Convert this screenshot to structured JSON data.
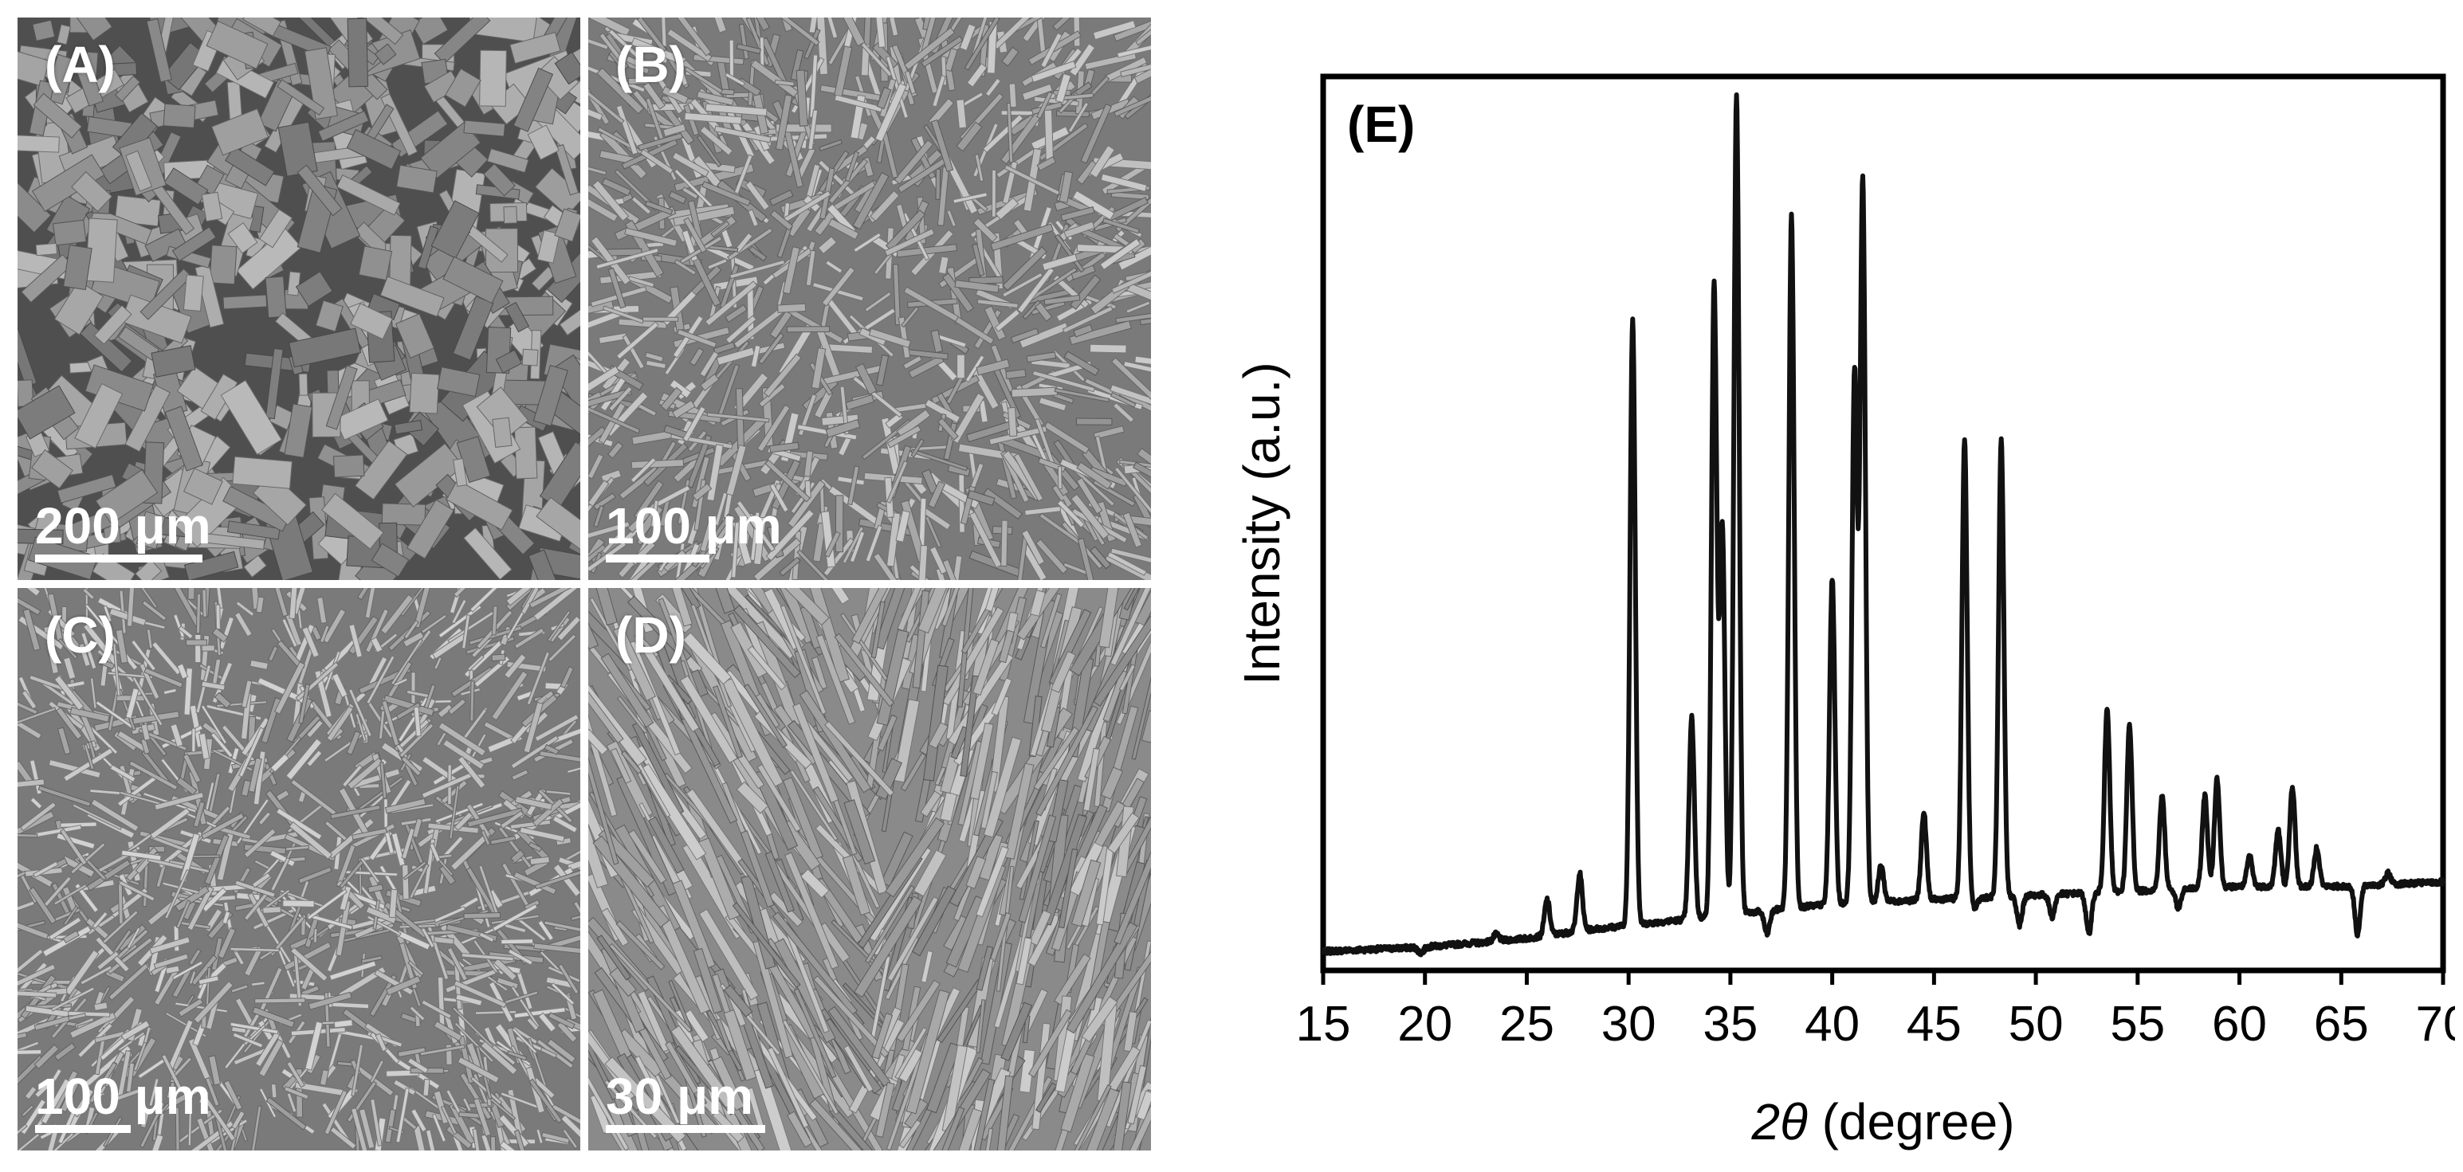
{
  "panels": [
    {
      "label": "(A)",
      "scale": "200 μm",
      "texture": "plate-fragments"
    },
    {
      "label": "(B)",
      "scale": "100 μm",
      "texture": "needle-clusters"
    },
    {
      "label": "(C)",
      "scale": "100 μm",
      "texture": "fibrous-aggregates"
    },
    {
      "label": "(D)",
      "scale": "30 μm",
      "texture": "layered-bundles"
    }
  ],
  "colors": {
    "sem_dark": "#5a5a5a",
    "sem_light": "#c8c8c8",
    "line": "#111111",
    "axis": "#000000"
  },
  "chart_data": {
    "type": "line",
    "panel_label": "(E)",
    "xlabel": "2θ (degree)",
    "ylabel": "Intensity (a.u.)",
    "xlim": [
      15,
      70
    ],
    "ylim": [
      0,
      100
    ],
    "x_ticks": [
      15,
      20,
      25,
      30,
      35,
      40,
      45,
      50,
      55,
      60,
      65,
      70
    ],
    "y_ticks_shown": false,
    "grid": false,
    "background": {
      "x": [
        15,
        20,
        25,
        28,
        32,
        36,
        40,
        45,
        50,
        55,
        60,
        65,
        70
      ],
      "y": [
        1.0,
        1.5,
        2.5,
        3.5,
        4.5,
        5.5,
        6.5,
        7.0,
        7.5,
        8.0,
        8.5,
        8.5,
        9.0
      ]
    },
    "peaks": [
      {
        "x": 19.8,
        "y": 0.8
      },
      {
        "x": 22.7,
        "y": 2.0
      },
      {
        "x": 23.5,
        "y": 3.0
      },
      {
        "x": 26.0,
        "y": 7.0
      },
      {
        "x": 27.6,
        "y": 10.0
      },
      {
        "x": 30.2,
        "y": 74.0
      },
      {
        "x": 33.1,
        "y": 28.0
      },
      {
        "x": 34.2,
        "y": 78.0
      },
      {
        "x": 34.6,
        "y": 50.0
      },
      {
        "x": 35.3,
        "y": 100.0
      },
      {
        "x": 36.8,
        "y": 3.0
      },
      {
        "x": 38.0,
        "y": 86.0
      },
      {
        "x": 40.0,
        "y": 44.0
      },
      {
        "x": 41.1,
        "y": 68.0
      },
      {
        "x": 41.5,
        "y": 90.0
      },
      {
        "x": 42.4,
        "y": 11.0
      },
      {
        "x": 44.5,
        "y": 17.0
      },
      {
        "x": 46.5,
        "y": 60.0
      },
      {
        "x": 47.0,
        "y": 6.0
      },
      {
        "x": 48.3,
        "y": 60.0
      },
      {
        "x": 49.2,
        "y": 4.0
      },
      {
        "x": 50.8,
        "y": 5.0
      },
      {
        "x": 52.6,
        "y": 3.0
      },
      {
        "x": 53.5,
        "y": 29.0
      },
      {
        "x": 54.6,
        "y": 27.0
      },
      {
        "x": 55.3,
        "y": 8.0
      },
      {
        "x": 56.2,
        "y": 19.0
      },
      {
        "x": 57.0,
        "y": 6.0
      },
      {
        "x": 58.3,
        "y": 19.0
      },
      {
        "x": 58.9,
        "y": 21.0
      },
      {
        "x": 60.5,
        "y": 12.0
      },
      {
        "x": 61.9,
        "y": 15.0
      },
      {
        "x": 62.6,
        "y": 20.0
      },
      {
        "x": 63.8,
        "y": 13.0
      },
      {
        "x": 65.8,
        "y": 3.0
      },
      {
        "x": 67.3,
        "y": 10.0
      }
    ]
  }
}
